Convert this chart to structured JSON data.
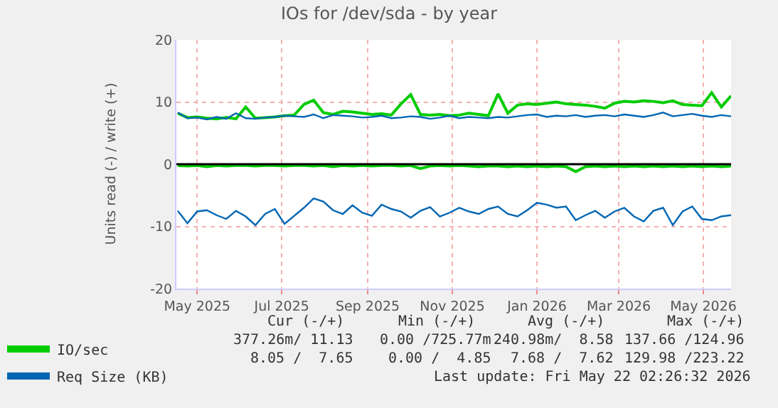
{
  "chart_data": {
    "type": "line",
    "title": "IOs for /dev/sda - by year",
    "ylabel": "Units read (-) / write (+)",
    "x": [
      "2025-04-17",
      "2025-04-24",
      "2025-05-01",
      "2025-05-08",
      "2025-05-15",
      "2025-05-22",
      "2025-05-29",
      "2025-06-05",
      "2025-06-12",
      "2025-06-19",
      "2025-06-26",
      "2025-07-03",
      "2025-07-10",
      "2025-07-17",
      "2025-07-24",
      "2025-07-31",
      "2025-08-07",
      "2025-08-14",
      "2025-08-21",
      "2025-08-28",
      "2025-09-04",
      "2025-09-11",
      "2025-09-18",
      "2025-09-25",
      "2025-10-02",
      "2025-10-09",
      "2025-10-16",
      "2025-10-23",
      "2025-10-30",
      "2025-11-06",
      "2025-11-13",
      "2025-11-20",
      "2025-11-27",
      "2025-12-04",
      "2025-12-11",
      "2025-12-18",
      "2025-12-25",
      "2026-01-01",
      "2026-01-08",
      "2026-01-15",
      "2026-01-22",
      "2026-01-29",
      "2026-02-05",
      "2026-02-12",
      "2026-02-19",
      "2026-02-26",
      "2026-03-05",
      "2026-03-12",
      "2026-03-19",
      "2026-03-26",
      "2026-04-02",
      "2026-04-09",
      "2026-04-16",
      "2026-04-23",
      "2026-04-30",
      "2026-05-07",
      "2026-05-14",
      "2026-05-21"
    ],
    "series": [
      {
        "name": "IO/sec",
        "color": "#00cc00",
        "values": [
          8.2,
          7.5,
          7.6,
          7.4,
          7.3,
          7.5,
          7.3,
          9.2,
          7.4,
          7.5,
          7.6,
          7.8,
          7.9,
          9.6,
          10.3,
          8.3,
          8.0,
          8.5,
          8.4,
          8.2,
          8.0,
          8.1,
          7.9,
          9.7,
          11.2,
          8.0,
          7.9,
          8.0,
          7.8,
          7.9,
          8.2,
          8.0,
          7.8,
          11.3,
          8.2,
          9.5,
          9.7,
          9.6,
          9.8,
          10.0,
          9.7,
          9.6,
          9.5,
          9.3,
          9.0,
          9.8,
          10.1,
          10.0,
          10.2,
          10.1,
          9.9,
          10.2,
          9.6,
          9.5,
          9.4,
          11.5,
          9.2,
          11.0
        ]
      },
      {
        "color": "#00cc00",
        "values": [
          -0.2,
          -0.3,
          -0.2,
          -0.4,
          -0.2,
          -0.3,
          -0.2,
          -0.2,
          -0.3,
          -0.2,
          -0.2,
          -0.3,
          -0.2,
          -0.2,
          -0.3,
          -0.2,
          -0.4,
          -0.2,
          -0.3,
          -0.2,
          -0.3,
          -0.2,
          -0.2,
          -0.3,
          -0.2,
          -0.7,
          -0.3,
          -0.2,
          -0.3,
          -0.2,
          -0.3,
          -0.4,
          -0.3,
          -0.3,
          -0.4,
          -0.3,
          -0.4,
          -0.3,
          -0.4,
          -0.3,
          -0.4,
          -1.2,
          -0.4,
          -0.3,
          -0.4,
          -0.3,
          -0.4,
          -0.3,
          -0.4,
          -0.3,
          -0.4,
          -0.3,
          -0.4,
          -0.3,
          -0.4,
          -0.3,
          -0.4,
          -0.3
        ]
      },
      {
        "name": "Req Size (KB)",
        "color": "#0066b3",
        "values": [
          8.3,
          7.4,
          7.5,
          7.2,
          7.6,
          7.3,
          8.2,
          7.4,
          7.3,
          7.5,
          7.6,
          7.8,
          7.7,
          7.6,
          8.0,
          7.4,
          7.9,
          7.8,
          7.7,
          7.5,
          7.6,
          7.8,
          7.4,
          7.5,
          7.7,
          7.6,
          7.3,
          7.5,
          7.8,
          7.4,
          7.6,
          7.5,
          7.4,
          7.6,
          7.5,
          7.7,
          7.9,
          8.0,
          7.6,
          7.8,
          7.7,
          7.9,
          7.6,
          7.8,
          7.9,
          7.7,
          8.0,
          7.8,
          7.6,
          7.9,
          8.3,
          7.7,
          7.9,
          8.1,
          7.8,
          7.6,
          7.9,
          7.7
        ]
      },
      {
        "color": "#0066b3",
        "values": [
          -7.5,
          -9.5,
          -7.6,
          -7.4,
          -8.2,
          -8.8,
          -7.5,
          -8.4,
          -9.8,
          -8.0,
          -7.2,
          -9.6,
          -8.3,
          -7.0,
          -5.5,
          -6.0,
          -7.4,
          -8.0,
          -6.6,
          -7.8,
          -8.3,
          -6.5,
          -7.2,
          -7.6,
          -8.6,
          -7.5,
          -6.9,
          -8.4,
          -7.8,
          -7.0,
          -7.6,
          -8.0,
          -7.2,
          -6.8,
          -8.0,
          -8.4,
          -7.4,
          -6.2,
          -6.5,
          -7.0,
          -6.8,
          -9.0,
          -8.2,
          -7.5,
          -8.6,
          -7.6,
          -7.0,
          -8.4,
          -9.2,
          -7.5,
          -7.0,
          -9.8,
          -7.6,
          -6.8,
          -8.8,
          -9.0,
          -8.4,
          -8.2
        ]
      }
    ],
    "xlim": [
      "2025-04-16",
      "2026-05-21"
    ],
    "xticks": [
      {
        "value": "2025-05-01",
        "label": "May 2025"
      },
      {
        "value": "2025-07-01",
        "label": "Jul 2025"
      },
      {
        "value": "2025-09-01",
        "label": "Sep 2025"
      },
      {
        "value": "2025-11-01",
        "label": "Nov 2025"
      },
      {
        "value": "2026-01-01",
        "label": "Jan 2026"
      },
      {
        "value": "2026-03-01",
        "label": "Mar 2026"
      },
      {
        "value": "2026-05-01",
        "label": "May 2026"
      }
    ],
    "ylim": [
      -20,
      20
    ],
    "yticks": [
      -20,
      -10,
      0,
      10,
      20
    ],
    "ref_lines": [
      {
        "axis": "y",
        "value": 0,
        "color": "#000000"
      }
    ],
    "grid": true,
    "legend": "bottom left",
    "marker": "none",
    "line_style": "solid",
    "annotations": [
      "Cur (-/+)",
      "Min (-/+)",
      "Avg (-/+)",
      "Max (-/+)",
      "377.26m/ 11.13",
      "0.00 /725.77m",
      "240.98m/  8.58",
      "137.66 /124.96",
      "8.05 /  7.65",
      "0.00 /  4.85",
      "7.68 /  7.62",
      "129.98 /223.22",
      "Last update: Fri May 22 02:26:32 2026"
    ]
  }
}
